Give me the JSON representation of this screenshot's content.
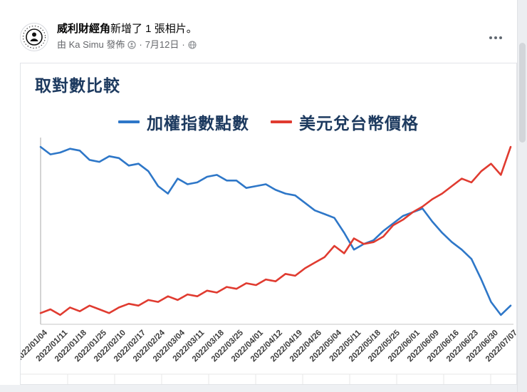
{
  "post": {
    "page_name": "威利財經角",
    "action_text": "新增了 1 張相片。",
    "byline": "由 Ka Simu 發佈",
    "separator": "·",
    "date": "7月12日"
  },
  "chart_data": {
    "type": "line",
    "title": "取對數比較",
    "legend_position": "top-center",
    "grid": "off",
    "x_tick_rotation": -45,
    "y_axis": {
      "visible": false,
      "range": [
        0,
        100
      ]
    },
    "categories": [
      "2022/01/04",
      "2022/01/11",
      "2022/01/18",
      "2022/01/25",
      "2022/02/10",
      "2022/02/17",
      "2022/02/24",
      "2022/03/04",
      "2022/03/11",
      "2022/03/18",
      "2022/03/25",
      "2022/04/01",
      "2022/04/12",
      "2022/04/19",
      "2022/04/26",
      "2022/05/04",
      "2022/05/11",
      "2022/05/18",
      "2022/05/25",
      "2022/06/01",
      "2022/06/09",
      "2022/06/16",
      "2022/06/23",
      "2022/06/30",
      "2022/07/07"
    ],
    "series": [
      {
        "name": "加權指數點數",
        "color": "#2e77c8",
        "values": [
          95,
          91,
          92,
          94,
          93,
          88,
          87,
          90,
          89,
          85,
          86,
          82,
          74,
          70,
          78,
          75,
          76,
          79,
          80,
          77,
          77,
          73,
          74,
          75,
          72,
          70,
          69,
          65,
          61,
          59,
          57,
          49,
          40,
          43,
          45,
          50,
          54,
          58,
          60,
          62,
          55,
          49,
          44,
          40,
          35,
          24,
          12,
          5,
          10
        ]
      },
      {
        "name": "美元兌台幣價格",
        "color": "#e03b30",
        "values": [
          6,
          8,
          5,
          9,
          7,
          10,
          8,
          6,
          9,
          11,
          10,
          13,
          12,
          15,
          13,
          16,
          15,
          18,
          17,
          20,
          19,
          22,
          21,
          24,
          23,
          27,
          26,
          30,
          33,
          36,
          42,
          38,
          46,
          43,
          44,
          47,
          53,
          56,
          60,
          63,
          67,
          70,
          74,
          78,
          76,
          82,
          86,
          80,
          95
        ]
      }
    ]
  },
  "colors": {
    "title_navy": "#1d3a5f",
    "meta_gray": "#65676b",
    "blue_line": "#2e77c8",
    "red_line": "#e03b30"
  }
}
